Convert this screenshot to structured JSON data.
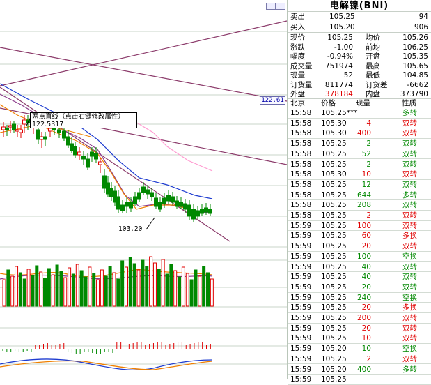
{
  "chart": {
    "tooltip_line1": "两点直线（点击右键修改属性）",
    "tooltip_line2": "122.5317",
    "right_price_tag": "122.61",
    "low_marker": "103.20",
    "candles_note": "daily candles",
    "colors": {
      "up": "#e00000",
      "down": "#008800",
      "ma1": "#f08000",
      "ma2": "#8b3a8b",
      "ma3": "#1e3cd0",
      "ma4": "#ff9ad0",
      "trend": "#8b3a6a"
    }
  },
  "panel": {
    "title": "电解镍(BNI)",
    "sell_label": "卖出",
    "sell_price": "105.25",
    "sell_vol": "94",
    "buy_label": "买入",
    "buy_price": "105.20",
    "buy_vol": "906",
    "stats": [
      {
        "l1": "现价",
        "v1": "105.25",
        "c1": "black",
        "l2": "均价",
        "v2": "105.26",
        "c2": "black"
      },
      {
        "l1": "涨跌",
        "v1": "-1.00",
        "c1": "black",
        "l2": "前均",
        "v2": "106.25",
        "c2": "black"
      },
      {
        "l1": "幅度",
        "v1": "-0.94%",
        "c1": "black",
        "l2": "开盘",
        "v2": "105.35",
        "c2": "black"
      },
      {
        "l1": "成交量",
        "v1": "751974",
        "c1": "black",
        "l2": "最高",
        "v2": "105.65",
        "c2": "black"
      },
      {
        "l1": "现量",
        "v1": "52",
        "c1": "black",
        "l2": "最低",
        "v2": "104.85",
        "c2": "black"
      },
      {
        "l1": "订货量",
        "v1": "811774",
        "c1": "black",
        "l2": "订货差",
        "v2": "-6662",
        "c2": "black"
      },
      {
        "l1": "外盘",
        "v1": "378184",
        "c1": "red",
        "l2": "内盘",
        "v2": "373790",
        "c2": "black"
      }
    ],
    "tick_header": {
      "city": "北京",
      "price": "价格",
      "vol": "现量",
      "nature": "性质"
    },
    "ticks": [
      {
        "t": "15:58",
        "p": "105.25***",
        "v": "",
        "n": "多转",
        "vc": "red",
        "nc": "green"
      },
      {
        "t": "15:58",
        "p": "105.30",
        "v": "4",
        "n": "双转",
        "vc": "red",
        "nc": "red"
      },
      {
        "t": "15:58",
        "p": "105.30",
        "v": "400",
        "n": "双转",
        "vc": "red",
        "nc": "red"
      },
      {
        "t": "15:58",
        "p": "105.25",
        "v": "2",
        "n": "双转",
        "vc": "green",
        "nc": "green"
      },
      {
        "t": "15:58",
        "p": "105.25",
        "v": "52",
        "n": "双转",
        "vc": "green",
        "nc": "green"
      },
      {
        "t": "15:58",
        "p": "105.25",
        "v": "2",
        "n": "双转",
        "vc": "green",
        "nc": "green"
      },
      {
        "t": "15:58",
        "p": "105.30",
        "v": "10",
        "n": "双转",
        "vc": "red",
        "nc": "red"
      },
      {
        "t": "15:58",
        "p": "105.25",
        "v": "12",
        "n": "双转",
        "vc": "green",
        "nc": "green"
      },
      {
        "t": "15:58",
        "p": "105.25",
        "v": "644",
        "n": "多转",
        "vc": "green",
        "nc": "green"
      },
      {
        "t": "15:58",
        "p": "105.25",
        "v": "208",
        "n": "双转",
        "vc": "green",
        "nc": "green"
      },
      {
        "t": "15:58",
        "p": "105.25",
        "v": "2",
        "n": "双转",
        "vc": "red",
        "nc": "red"
      },
      {
        "t": "15:59",
        "p": "105.25",
        "v": "100",
        "n": "双转",
        "vc": "red",
        "nc": "red"
      },
      {
        "t": "15:59",
        "p": "105.25",
        "v": "60",
        "n": "多换",
        "vc": "red",
        "nc": "red"
      },
      {
        "t": "15:59",
        "p": "105.25",
        "v": "20",
        "n": "双转",
        "vc": "red",
        "nc": "red"
      },
      {
        "t": "15:59",
        "p": "105.25",
        "v": "100",
        "n": "空换",
        "vc": "green",
        "nc": "green"
      },
      {
        "t": "15:59",
        "p": "105.25",
        "v": "40",
        "n": "双转",
        "vc": "green",
        "nc": "green"
      },
      {
        "t": "15:59",
        "p": "105.25",
        "v": "40",
        "n": "双转",
        "vc": "green",
        "nc": "green"
      },
      {
        "t": "15:59",
        "p": "105.25",
        "v": "20",
        "n": "双转",
        "vc": "green",
        "nc": "green"
      },
      {
        "t": "15:59",
        "p": "105.25",
        "v": "240",
        "n": "空换",
        "vc": "green",
        "nc": "green"
      },
      {
        "t": "15:59",
        "p": "105.25",
        "v": "20",
        "n": "多换",
        "vc": "red",
        "nc": "red"
      },
      {
        "t": "15:59",
        "p": "105.25",
        "v": "200",
        "n": "双转",
        "vc": "red",
        "nc": "red"
      },
      {
        "t": "15:59",
        "p": "105.25",
        "v": "20",
        "n": "双转",
        "vc": "red",
        "nc": "red"
      },
      {
        "t": "15:59",
        "p": "105.25",
        "v": "10",
        "n": "双转",
        "vc": "red",
        "nc": "red"
      },
      {
        "t": "15:59",
        "p": "105.20",
        "v": "10",
        "n": "空换",
        "vc": "green",
        "nc": "green"
      },
      {
        "t": "15:59",
        "p": "105.25",
        "v": "2",
        "n": "双转",
        "vc": "red",
        "nc": "red"
      },
      {
        "t": "15:59",
        "p": "105.20",
        "v": "400",
        "n": "多转",
        "vc": "green",
        "nc": "green"
      },
      {
        "t": "15:59",
        "p": "105.25",
        "v": "",
        "n": "",
        "vc": "red",
        "nc": "red"
      }
    ]
  }
}
